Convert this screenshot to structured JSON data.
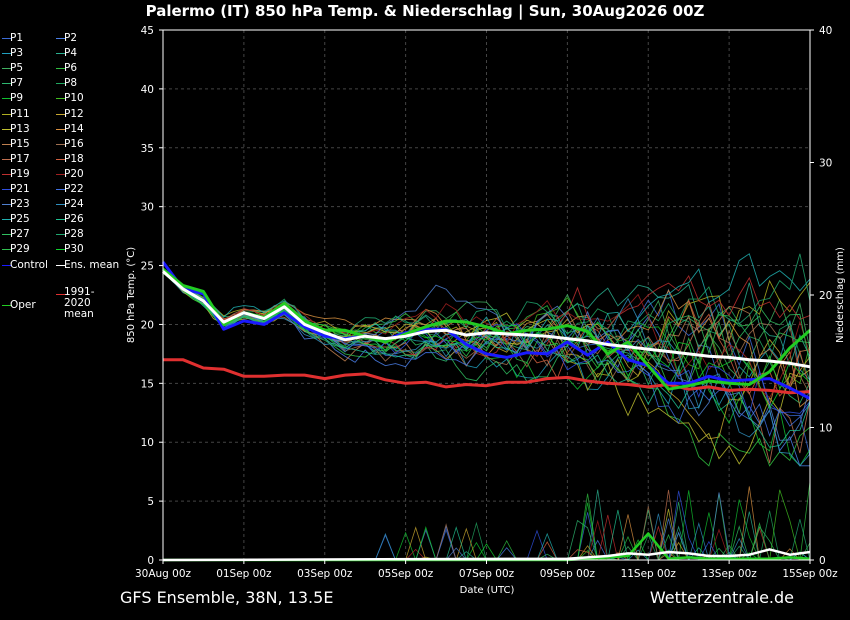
{
  "title": "Palermo  (IT)  850 hPa Temp. & Niederschlag | Sun, 30Aug2026 00Z",
  "footer": {
    "left": "GFS Ensemble, 38N, 13.5E",
    "right": "Wetterzentrale.de"
  },
  "chart_data": {
    "type": "line",
    "xlabel": "Date (UTC)",
    "ylabel_left": "850 hPa Temp. (°C)",
    "ylabel_right": "Niederschlag (mm)",
    "ylim_left": [
      0,
      45
    ],
    "ylim_right": [
      0,
      40
    ],
    "xlim_hours": [
      0,
      384
    ],
    "x_ticks": [
      "30Aug 00z",
      "01Sep 00z",
      "03Sep 00z",
      "05Sep 00z",
      "07Sep 00z",
      "09Sep 00z",
      "11Sep 00z",
      "13Sep 00z",
      "15Sep 00z"
    ],
    "y_ticks_left": [
      0,
      5,
      10,
      15,
      20,
      25,
      30,
      35,
      40,
      45
    ],
    "y_ticks_right": [
      0,
      10,
      20,
      30,
      40
    ],
    "grid": true,
    "legend_placement": "left",
    "colors": {
      "ens_mean": "#ffffff",
      "climatology": "#e03030",
      "oper": "#22cc22",
      "control": "#1a1aff",
      "members": [
        "#3b6bd6",
        "#4a7fe8",
        "#20a0c0",
        "#2ab090",
        "#40b060",
        "#30c040",
        "#2db870",
        "#20a860",
        "#10c030",
        "#40c020",
        "#b0b020",
        "#c8a830",
        "#c0c030",
        "#d89040",
        "#c08050",
        "#a07050",
        "#c07050",
        "#d06040",
        "#c03030",
        "#a02020",
        "#3050e0",
        "#4070e0",
        "#5080d0",
        "#3090c0",
        "#20b0b0",
        "#20c090",
        "#30c060",
        "#20a870",
        "#30c050",
        "#10d030"
      ]
    },
    "series": [
      {
        "name": "Ens. mean",
        "x": [
          0,
          12,
          24,
          36,
          48,
          60,
          72,
          84,
          96,
          108,
          120,
          132,
          144,
          156,
          168,
          180,
          192,
          204,
          216,
          228,
          240,
          252,
          264,
          276,
          288,
          300,
          312,
          324,
          336,
          348,
          360,
          372,
          384
        ],
        "y": [
          24.5,
          23,
          22,
          20.2,
          21,
          20.5,
          21.5,
          20,
          19.3,
          18.7,
          19,
          18.8,
          19,
          19.4,
          19.5,
          19.1,
          19.3,
          19.2,
          19.1,
          19,
          18.8,
          18.6,
          18.3,
          18.1,
          17.9,
          17.7,
          17.5,
          17.3,
          17.2,
          17,
          16.9,
          16.7,
          16.4
        ]
      },
      {
        "name": "1991-2020 mean",
        "x": [
          0,
          12,
          24,
          36,
          48,
          60,
          72,
          84,
          96,
          108,
          120,
          132,
          144,
          156,
          168,
          180,
          192,
          204,
          216,
          228,
          240,
          252,
          264,
          276,
          288,
          300,
          312,
          324,
          336,
          348,
          360,
          372,
          384
        ],
        "y": [
          17,
          17,
          16.3,
          16.2,
          15.6,
          15.6,
          15.7,
          15.7,
          15.4,
          15.7,
          15.8,
          15.3,
          15,
          15.1,
          14.7,
          14.9,
          14.8,
          15.1,
          15.1,
          15.4,
          15.5,
          15.2,
          15,
          14.9,
          14.7,
          14.9,
          14.5,
          14.7,
          14.4,
          14.5,
          14.4,
          14.2,
          14.3
        ]
      },
      {
        "name": "Oper",
        "x": [
          0,
          12,
          24,
          36,
          48,
          60,
          72,
          84,
          96,
          108,
          120,
          132,
          144,
          156,
          168,
          180,
          192,
          204,
          216,
          228,
          240,
          252,
          264,
          276,
          288,
          300,
          312,
          324,
          336,
          348,
          360,
          372,
          384
        ],
        "y": [
          24.7,
          23.3,
          22.8,
          20,
          21,
          20.6,
          21.8,
          20.3,
          19.5,
          19.5,
          19,
          18.5,
          19.2,
          19.8,
          20.3,
          20.2,
          19.8,
          19.2,
          19.5,
          19.6,
          19.9,
          19.4,
          17.5,
          18.5,
          16.5,
          14.5,
          14.8,
          15.2,
          15,
          14.9,
          16,
          18,
          19.5
        ]
      },
      {
        "name": "Control",
        "x": [
          0,
          12,
          24,
          36,
          48,
          60,
          72,
          84,
          96,
          108,
          120,
          132,
          144,
          156,
          168,
          180,
          192,
          204,
          216,
          228,
          240,
          252,
          264,
          276,
          288,
          300,
          312,
          324,
          336,
          348,
          360,
          372,
          384
        ],
        "y": [
          25.3,
          23,
          22.6,
          19.6,
          20.3,
          20,
          21,
          19.8,
          19,
          18.8,
          19,
          18.7,
          19.3,
          19.6,
          19.6,
          18.3,
          17.5,
          17.2,
          17.6,
          17.5,
          18.5,
          17.4,
          18.5,
          17,
          16.5,
          15,
          15,
          15.6,
          15.2,
          15.3,
          15.4,
          14.6,
          13.7
        ]
      },
      {
        "name": "Precip (Oper)",
        "x": [
          0,
          240,
          276,
          288,
          300,
          312,
          324,
          336,
          348,
          360,
          372,
          384
        ],
        "y": [
          0,
          0,
          0.3,
          2,
          0.1,
          0.2,
          0.1,
          0.1,
          0.1,
          0.1,
          0.2,
          0.1
        ]
      },
      {
        "name": "Precip (Ens. mean)",
        "x": [
          0,
          240,
          264,
          276,
          288,
          300,
          312,
          324,
          336,
          348,
          360,
          372,
          384
        ],
        "y": [
          0,
          0.1,
          0.3,
          0.5,
          0.4,
          0.6,
          0.5,
          0.3,
          0.3,
          0.4,
          0.8,
          0.4,
          0.6
        ]
      }
    ]
  },
  "legend": [
    {
      "label": "P1",
      "color": "#3b6bd6"
    },
    {
      "label": "P2",
      "color": "#4a7fe8"
    },
    {
      "label": "P3",
      "color": "#20a0c0"
    },
    {
      "label": "P4",
      "color": "#2ab090"
    },
    {
      "label": "P5",
      "color": "#40b060"
    },
    {
      "label": "P6",
      "color": "#30c040"
    },
    {
      "label": "P7",
      "color": "#2db870"
    },
    {
      "label": "P8",
      "color": "#20a860"
    },
    {
      "label": "P9",
      "color": "#10c030"
    },
    {
      "label": "P10",
      "color": "#40c020"
    },
    {
      "label": "P11",
      "color": "#b0b020"
    },
    {
      "label": "P12",
      "color": "#c8a830"
    },
    {
      "label": "P13",
      "color": "#c0c030"
    },
    {
      "label": "P14",
      "color": "#d89040"
    },
    {
      "label": "P15",
      "color": "#c08050"
    },
    {
      "label": "P16",
      "color": "#a07050"
    },
    {
      "label": "P17",
      "color": "#c07050"
    },
    {
      "label": "P18",
      "color": "#d06040"
    },
    {
      "label": "P19",
      "color": "#c03030"
    },
    {
      "label": "P20",
      "color": "#a02020"
    },
    {
      "label": "P21",
      "color": "#3050e0"
    },
    {
      "label": "P22",
      "color": "#4070e0"
    },
    {
      "label": "P23",
      "color": "#5080d0"
    },
    {
      "label": "P24",
      "color": "#3090c0"
    },
    {
      "label": "P25",
      "color": "#20b0b0"
    },
    {
      "label": "P26",
      "color": "#20c090"
    },
    {
      "label": "P27",
      "color": "#30c060"
    },
    {
      "label": "P28",
      "color": "#20a870"
    },
    {
      "label": "P29",
      "color": "#30c050"
    },
    {
      "label": "P30",
      "color": "#10d030"
    },
    {
      "label": "Control",
      "color": "#1a1aff"
    },
    {
      "label": "Ens. mean",
      "color": "#ffffff"
    },
    {
      "label": "Oper",
      "color": "#22cc22"
    },
    {
      "label": "1991-2020 mean",
      "color": "#e03030"
    }
  ]
}
